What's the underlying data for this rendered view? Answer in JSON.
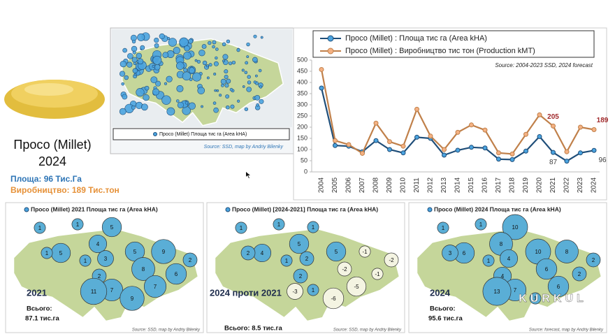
{
  "header": {
    "title": "Просо (Millet)",
    "year": "2024",
    "area": "Площа: 96 Тис.Га",
    "production": "Виробництво: 189 Тис.тон"
  },
  "top_map": {
    "legend": "Просо (Millet) Площа тис га (Area kHA)",
    "source": "Source: SSD, map by Andriy Bilenky"
  },
  "chart_data": {
    "type": "line",
    "annotation": "Source: 2004-2023 SSD, 2024 forecast",
    "legend": "top",
    "categories": [
      "2004",
      "2005",
      "2006",
      "2007",
      "2008",
      "2009",
      "2010",
      "2011",
      "2012",
      "2013",
      "2014",
      "2015",
      "2016",
      "2017",
      "2018",
      "2019",
      "2020",
      "2021",
      "2022",
      "2023",
      "2024"
    ],
    "series": [
      {
        "name": "Просо (Millet) : Площа тис га (Area kHA)",
        "color": "#1f4e79",
        "marker_color": "#4aa3df",
        "label_color": "#404040",
        "values": [
          375,
          118,
          115,
          90,
          140,
          100,
          85,
          155,
          150,
          75,
          97,
          110,
          107,
          57,
          55,
          93,
          158,
          87,
          48,
          85,
          96
        ],
        "value_labels": [
          null,
          null,
          null,
          null,
          null,
          null,
          null,
          null,
          null,
          null,
          null,
          null,
          null,
          null,
          null,
          null,
          null,
          "87",
          null,
          null,
          "96"
        ]
      },
      {
        "name": "Просо (Millet) : Виробництво тис тон (Production kMT)",
        "color": "#c0804a",
        "marker_color": "#f4b183",
        "label_color": "#a0282a",
        "values": [
          458,
          140,
          122,
          83,
          218,
          135,
          115,
          280,
          160,
          100,
          177,
          210,
          187,
          85,
          80,
          168,
          255,
          205,
          90,
          200,
          189
        ],
        "value_labels": [
          null,
          null,
          null,
          null,
          null,
          null,
          null,
          null,
          null,
          null,
          null,
          null,
          null,
          null,
          null,
          null,
          null,
          "205",
          null,
          null,
          "189"
        ]
      }
    ],
    "ylim": [
      0,
      500
    ],
    "yticks": [
      0,
      50,
      100,
      150,
      200,
      250,
      300,
      350,
      400,
      450,
      500
    ],
    "grid": false
  },
  "maps": [
    {
      "legend": "Просо (Millet)  2021 Площа тис га (Area kHA)",
      "label": "2021",
      "total_title": "Всього:",
      "total": "87.1 тис.га",
      "source": "Source: SSD, map by Andriy Bilenky",
      "values": [
        1,
        1,
        5,
        4,
        5,
        1,
        3,
        1,
        5,
        9,
        2,
        2,
        8,
        6,
        7,
        11,
        9,
        7
      ]
    },
    {
      "legend": "Просо (Millet)  [2024-2021] Площа тис га (Area kHA)",
      "label": "2024 проти 2021",
      "total_title": "Всього: 8.5 тис.га",
      "source": "Source: SSD, map by Andriy Bilenky",
      "values": [
        1,
        1,
        1,
        5,
        4,
        2,
        2,
        1,
        5,
        -1,
        -2,
        2,
        -2,
        -1,
        1,
        -3,
        -6,
        -5
      ]
    },
    {
      "legend": "Просо (Millet)  2024 Площа тис га (Area kHA)",
      "label": "2024",
      "total_title": "Всього:",
      "total": "95.6 тис.га",
      "source": "Source: forecast, map by Andriy Bilenky",
      "watermark": "KURKUL",
      "values": [
        1,
        1,
        10,
        8,
        6,
        3,
        4,
        1,
        10,
        8,
        2,
        4,
        6,
        2,
        7,
        13,
        1,
        6
      ]
    }
  ]
}
